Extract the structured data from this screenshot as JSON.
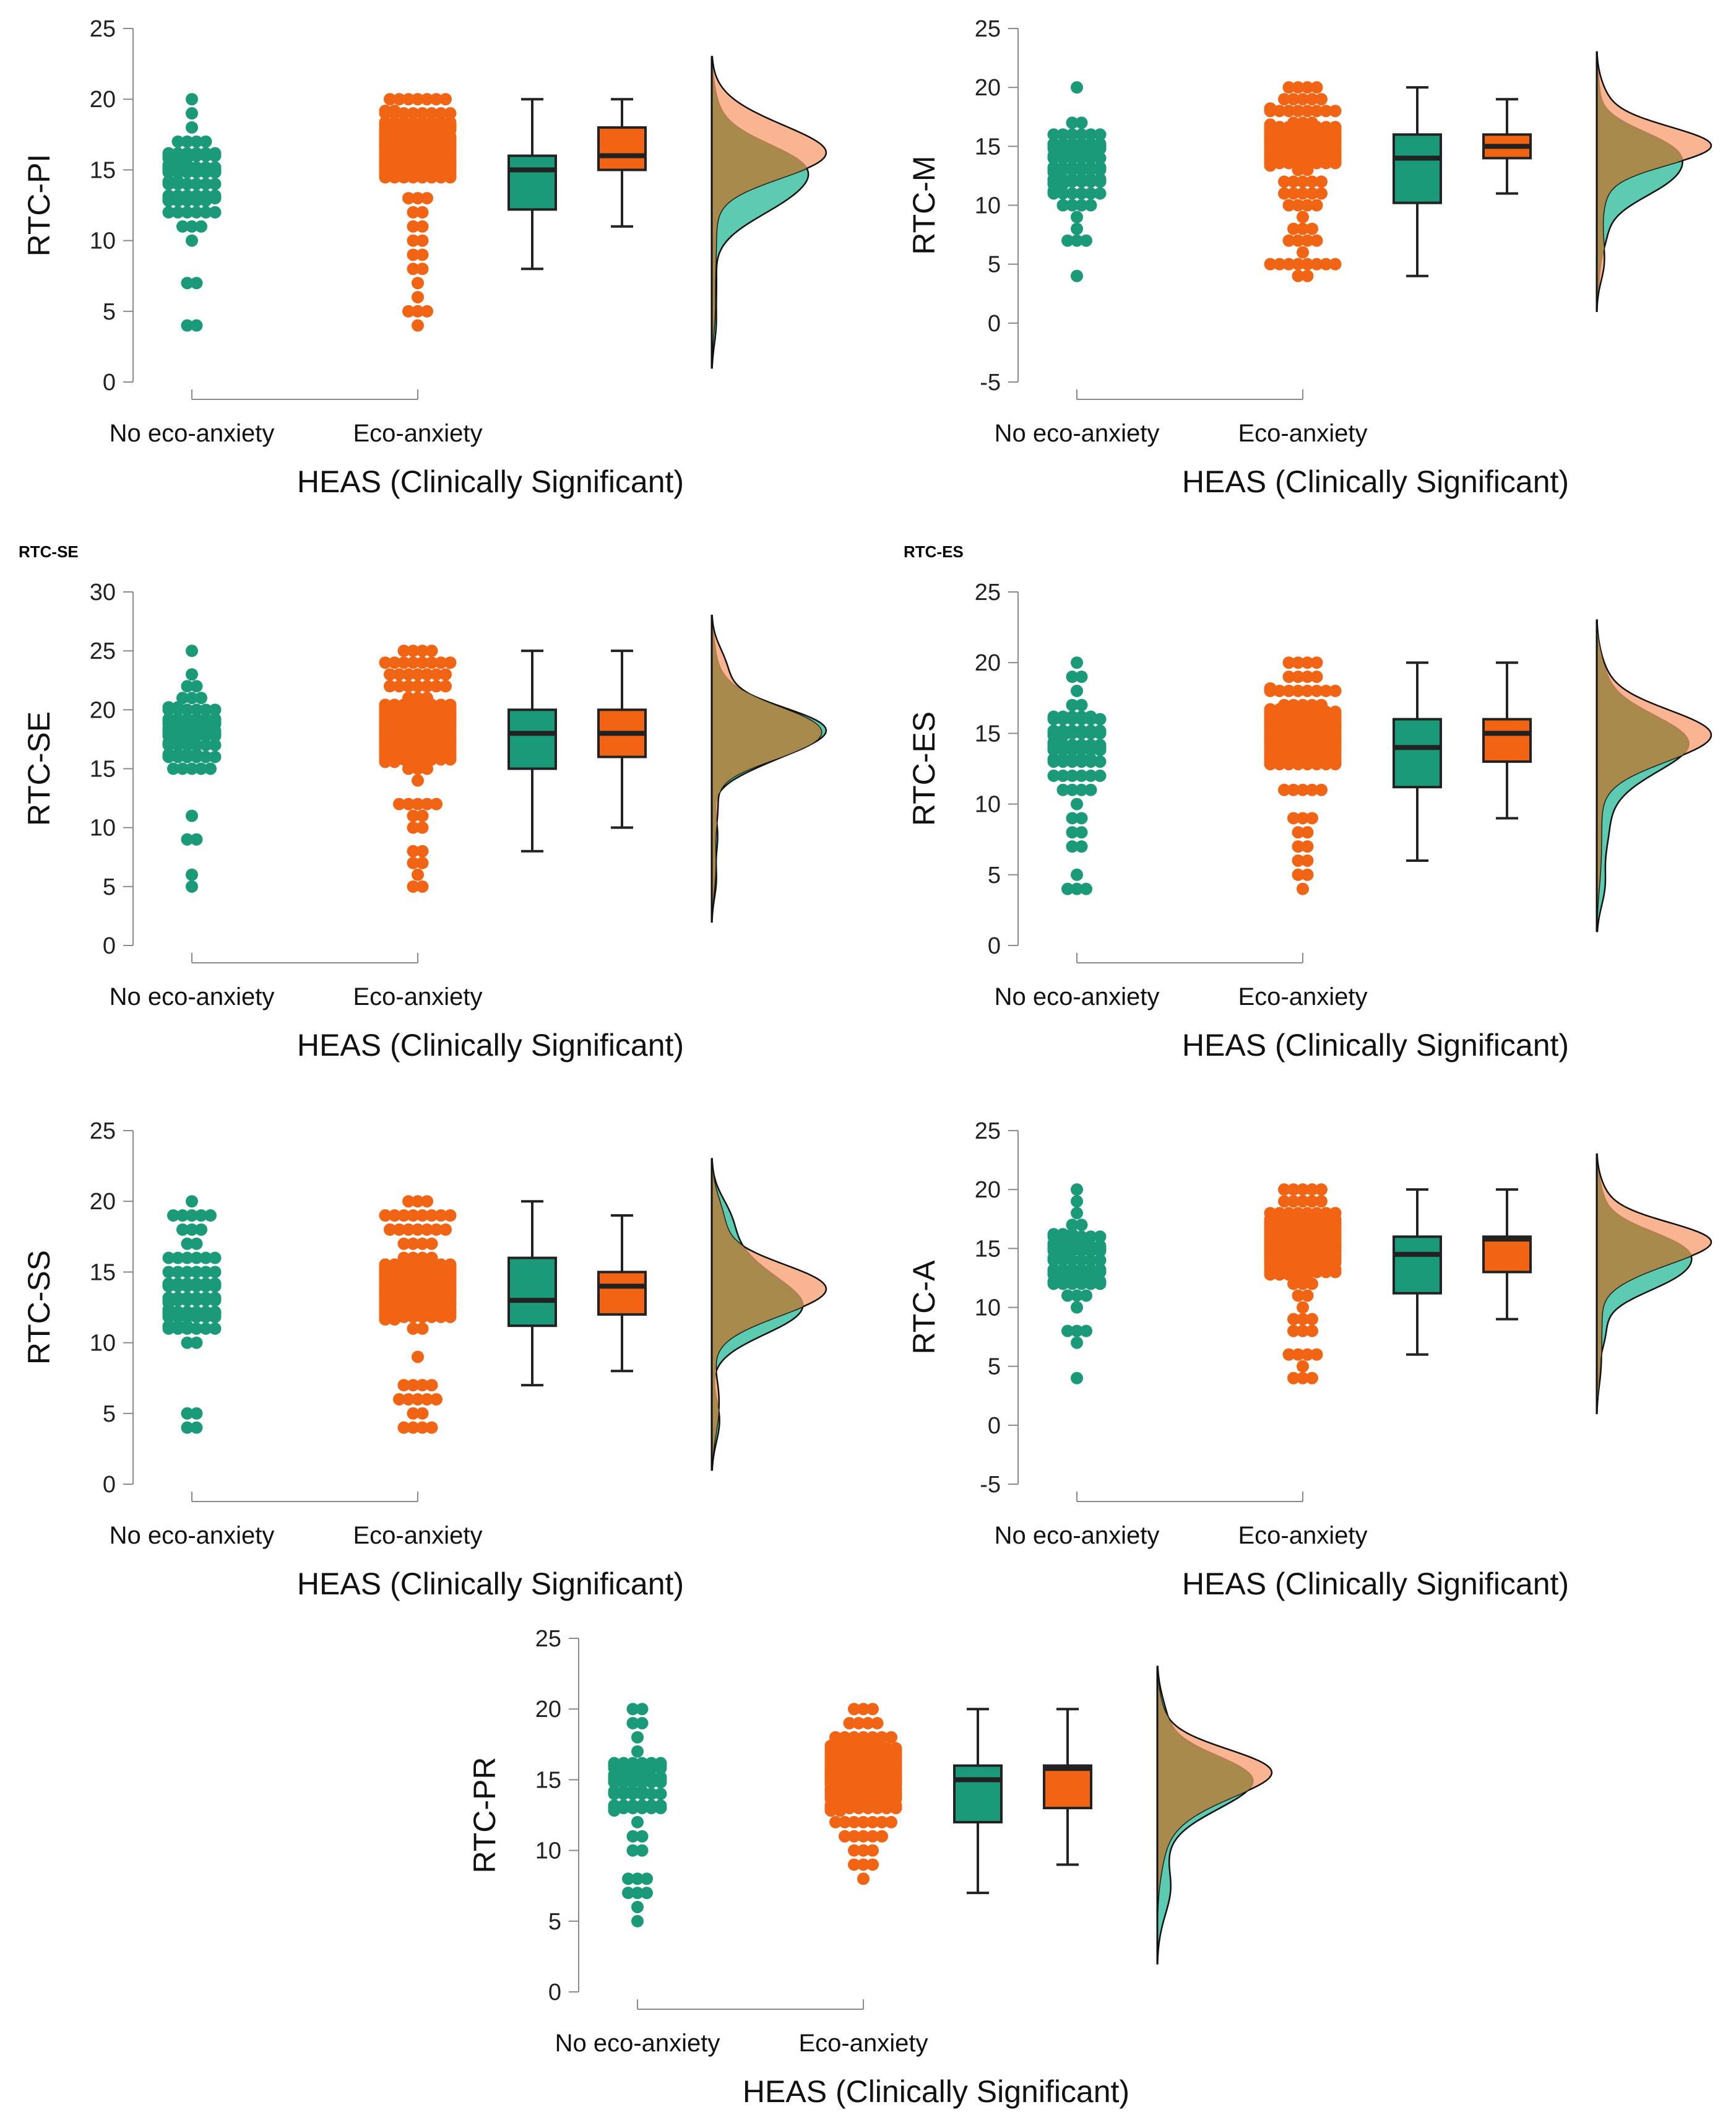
{
  "figure": {
    "colors": {
      "no": "#1a9a78",
      "eco": "#f06414",
      "density_no": "#3fc2a4",
      "density_eco": "#f79b6e",
      "density_overlap": "#a5884a"
    },
    "group_labels": [
      "No eco-anxiety",
      "Eco-anxiety"
    ],
    "xlabel": "HEAS (Clinically Significant)"
  },
  "chart_data": [
    {
      "type": "raincloud",
      "ylabel": "RTC-PI",
      "tag": "",
      "ylim": [
        0,
        25
      ],
      "yticks": [
        0,
        5,
        10,
        15,
        20,
        25
      ],
      "categories": [
        "No eco-anxiety",
        "Eco-anxiety"
      ],
      "xlabel": "HEAS (Clinically Significant)",
      "series": [
        {
          "name": "No eco-anxiety",
          "box": {
            "min": 8,
            "q1": 12.2,
            "median": 15,
            "q3": 16,
            "max": 20
          },
          "points_range": [
            4,
            20
          ]
        },
        {
          "name": "Eco-anxiety",
          "box": {
            "min": 11,
            "q1": 15,
            "median": 16,
            "q3": 18,
            "max": 20
          },
          "points_range": [
            4,
            20
          ]
        }
      ]
    },
    {
      "type": "raincloud",
      "ylabel": "RTC-M",
      "tag": "",
      "ylim": [
        -5,
        25
      ],
      "yticks": [
        -5,
        0,
        5,
        10,
        15,
        20,
        25
      ],
      "categories": [
        "No eco-anxiety",
        "Eco-anxiety"
      ],
      "xlabel": "HEAS (Clinically Significant)",
      "series": [
        {
          "name": "No eco-anxiety",
          "box": {
            "min": 4,
            "q1": 10.2,
            "median": 14,
            "q3": 16,
            "max": 20
          },
          "points_range": [
            4,
            20
          ]
        },
        {
          "name": "Eco-anxiety",
          "box": {
            "min": 11,
            "q1": 14,
            "median": 15,
            "q3": 16,
            "max": 19
          },
          "points_range": [
            4,
            20
          ]
        }
      ]
    },
    {
      "type": "raincloud",
      "ylabel": "RTC-SE",
      "tag": "RTC-SE",
      "ylim": [
        0,
        30
      ],
      "yticks": [
        0,
        5,
        10,
        15,
        20,
        25,
        30
      ],
      "categories": [
        "No eco-anxiety",
        "Eco-anxiety"
      ],
      "xlabel": "HEAS (Clinically Significant)",
      "series": [
        {
          "name": "No eco-anxiety",
          "box": {
            "min": 8,
            "q1": 15,
            "median": 18,
            "q3": 20,
            "max": 25
          },
          "points_range": [
            5,
            25
          ]
        },
        {
          "name": "Eco-anxiety",
          "box": {
            "min": 10,
            "q1": 16,
            "median": 18,
            "q3": 20,
            "max": 25
          },
          "points_range": [
            5,
            25
          ]
        }
      ]
    },
    {
      "type": "raincloud",
      "ylabel": "RTC-ES",
      "tag": "RTC-ES",
      "ylim": [
        0,
        25
      ],
      "yticks": [
        0,
        5,
        10,
        15,
        20,
        25
      ],
      "categories": [
        "No eco-anxiety",
        "Eco-anxiety"
      ],
      "xlabel": "HEAS (Clinically Significant)",
      "series": [
        {
          "name": "No eco-anxiety",
          "box": {
            "min": 6,
            "q1": 11.2,
            "median": 14,
            "q3": 16,
            "max": 20
          },
          "points_range": [
            4,
            20
          ]
        },
        {
          "name": "Eco-anxiety",
          "box": {
            "min": 9,
            "q1": 13,
            "median": 15,
            "q3": 16,
            "max": 20
          },
          "points_range": [
            4,
            20
          ]
        }
      ]
    },
    {
      "type": "raincloud",
      "ylabel": "RTC-SS",
      "tag": "",
      "ylim": [
        0,
        25
      ],
      "yticks": [
        0,
        5,
        10,
        15,
        20,
        25
      ],
      "categories": [
        "No eco-anxiety",
        "Eco-anxiety"
      ],
      "xlabel": "HEAS (Clinically Significant)",
      "series": [
        {
          "name": "No eco-anxiety",
          "box": {
            "min": 7,
            "q1": 11.2,
            "median": 13,
            "q3": 16,
            "max": 20
          },
          "points_range": [
            4,
            20
          ]
        },
        {
          "name": "Eco-anxiety",
          "box": {
            "min": 8,
            "q1": 12,
            "median": 14,
            "q3": 15,
            "max": 19
          },
          "points_range": [
            4,
            20
          ]
        }
      ]
    },
    {
      "type": "raincloud",
      "ylabel": "RTC-A",
      "tag": "",
      "ylim": [
        -5,
        25
      ],
      "yticks": [
        -5,
        0,
        5,
        10,
        15,
        20,
        25
      ],
      "categories": [
        "No eco-anxiety",
        "Eco-anxiety"
      ],
      "xlabel": "HEAS (Clinically Significant)",
      "series": [
        {
          "name": "No eco-anxiety",
          "box": {
            "min": 6,
            "q1": 11.2,
            "median": 14.5,
            "q3": 16,
            "max": 20
          },
          "points_range": [
            4,
            20
          ]
        },
        {
          "name": "Eco-anxiety",
          "box": {
            "min": 9,
            "q1": 13,
            "median": 15.8,
            "q3": 16,
            "max": 20
          },
          "points_range": [
            4,
            20
          ]
        }
      ]
    },
    {
      "type": "raincloud",
      "ylabel": "RTC-PR",
      "tag": "",
      "ylim": [
        0,
        25
      ],
      "yticks": [
        0,
        5,
        10,
        15,
        20,
        25
      ],
      "categories": [
        "No eco-anxiety",
        "Eco-anxiety"
      ],
      "xlabel": "HEAS (Clinically Significant)",
      "series": [
        {
          "name": "No eco-anxiety",
          "box": {
            "min": 7,
            "q1": 12,
            "median": 15,
            "q3": 16,
            "max": 20
          },
          "points_range": [
            5,
            20
          ]
        },
        {
          "name": "Eco-anxiety",
          "box": {
            "min": 9,
            "q1": 13,
            "median": 15.8,
            "q3": 16,
            "max": 20
          },
          "points_range": [
            8,
            20
          ]
        }
      ]
    }
  ]
}
